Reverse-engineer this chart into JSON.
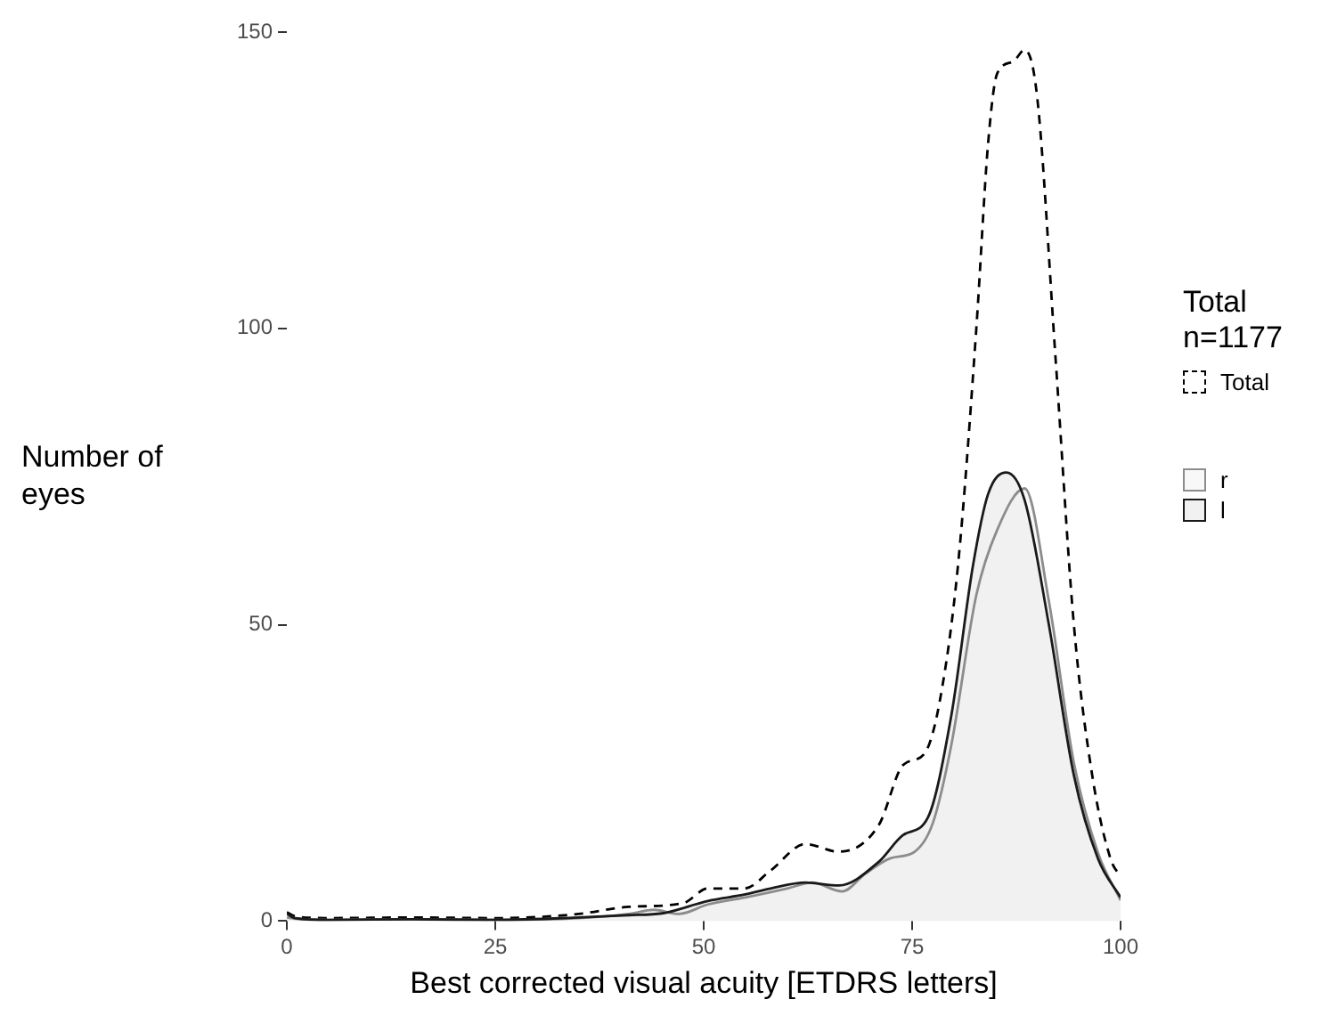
{
  "chart_data": {
    "type": "area",
    "xlabel": "Best corrected visual acuity [ETDRS letters]",
    "ylabel": "Number of\neyes",
    "legend_title": "Total\nn=1177",
    "legend": "right",
    "grid": false,
    "xlim": [
      0,
      100
    ],
    "xticks": [
      0,
      25,
      50,
      75,
      100
    ],
    "ylim": [
      0,
      150
    ],
    "yticks": [
      0,
      50,
      100,
      150
    ],
    "series": [
      {
        "name": "Total",
        "type": "line",
        "line_style": "dashed",
        "color": "#000000",
        "x": [
          0,
          1,
          5,
          15,
          25,
          35,
          41,
          47.5,
          50.5,
          54.9,
          58,
          62.2,
          66.2,
          71,
          73.9,
          76.5,
          78.3,
          80.5,
          82.7,
          84.1,
          85.2,
          87.1,
          88.5,
          90,
          92.2,
          94.4,
          96.6,
          98.8,
          100
        ],
        "values": [
          1.5,
          0.8,
          0.5,
          0.6,
          0.5,
          1.2,
          2.4,
          3,
          5.5,
          5.5,
          8.5,
          13,
          11.7,
          16.2,
          26.3,
          28.3,
          37,
          60,
          100,
          131,
          143,
          145,
          147,
          139,
          95,
          50,
          24.6,
          10.5,
          7.5
        ]
      },
      {
        "name": "r",
        "color": "#8c8c8c",
        "x": [
          0,
          1,
          5,
          15,
          25,
          35,
          41,
          44,
          47,
          50.5,
          55,
          60,
          63,
          66.6,
          69.4,
          72.4,
          75.3,
          77.5,
          79.7,
          82.7,
          85.2,
          88.5,
          91.4,
          94.4,
          97.3,
          100
        ],
        "values": [
          0.6,
          0.4,
          0.2,
          0.3,
          0.2,
          0.5,
          1.2,
          1.9,
          1.2,
          2.8,
          4,
          5.5,
          6.5,
          5,
          8,
          10.6,
          11.7,
          16.6,
          29.7,
          55,
          66,
          73,
          54,
          26.7,
          11.5,
          3.5
        ]
      },
      {
        "name": "l",
        "color": "#1a1a1a",
        "x": [
          0,
          1,
          5,
          15,
          25,
          35,
          41,
          45,
          50.5,
          55,
          58,
          62.2,
          66.2,
          71,
          73.9,
          76.9,
          79.7,
          82.3,
          84.1,
          86.3,
          88.5,
          91.4,
          94.4,
          97.3,
          100
        ],
        "values": [
          1.2,
          0.5,
          0.2,
          0.3,
          0.2,
          0.6,
          1,
          1.3,
          3.4,
          4.5,
          5.5,
          6.5,
          6,
          10,
          14.5,
          17.5,
          34.7,
          60,
          72,
          75.7,
          71,
          50,
          24.6,
          10.5,
          4
        ]
      }
    ]
  }
}
